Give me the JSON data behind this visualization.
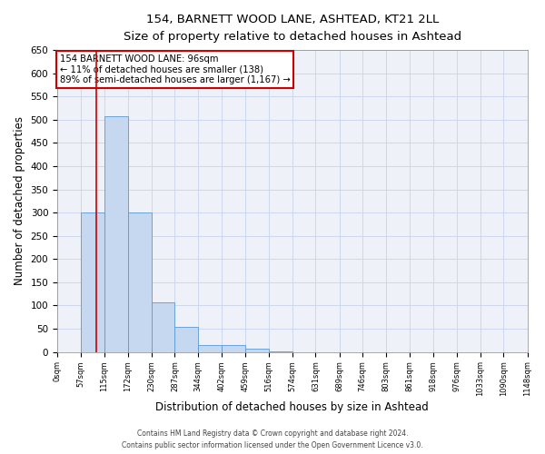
{
  "title1": "154, BARNETT WOOD LANE, ASHTEAD, KT21 2LL",
  "title2": "Size of property relative to detached houses in Ashtead",
  "xlabel": "Distribution of detached houses by size in Ashtead",
  "ylabel": "Number of detached properties",
  "bar_edges": [
    0,
    57,
    115,
    172,
    230,
    287,
    344,
    402,
    459,
    516,
    574,
    631,
    689,
    746,
    803,
    861,
    918,
    976,
    1033,
    1090,
    1148
  ],
  "bar_heights": [
    0,
    300,
    507,
    300,
    107,
    53,
    15,
    15,
    7,
    2,
    0,
    0,
    0,
    0,
    0,
    0,
    0,
    0,
    0,
    0
  ],
  "tick_labels": [
    "0sqm",
    "57sqm",
    "115sqm",
    "172sqm",
    "230sqm",
    "287sqm",
    "344sqm",
    "402sqm",
    "459sqm",
    "516sqm",
    "574sqm",
    "631sqm",
    "689sqm",
    "746sqm",
    "803sqm",
    "861sqm",
    "918sqm",
    "976sqm",
    "1033sqm",
    "1090sqm",
    "1148sqm"
  ],
  "bar_color": "#c5d8f0",
  "bar_edge_color": "#5b9bd5",
  "grid_color": "#c8d4e8",
  "bg_color": "#eef2f8",
  "red_line_x": 96,
  "annotation_line1": "154 BARNETT WOOD LANE: 96sqm",
  "annotation_line2": "← 11% of detached houses are smaller (138)",
  "annotation_line3": "89% of semi-detached houses are larger (1,167) →",
  "annotation_box_color": "#ffffff",
  "annotation_box_edge_color": "#cc0000",
  "ylim": [
    0,
    650
  ],
  "yticks": [
    0,
    50,
    100,
    150,
    200,
    250,
    300,
    350,
    400,
    450,
    500,
    550,
    600,
    650
  ],
  "footer1": "Contains HM Land Registry data © Crown copyright and database right 2024.",
  "footer2": "Contains public sector information licensed under the Open Government Licence v3.0."
}
